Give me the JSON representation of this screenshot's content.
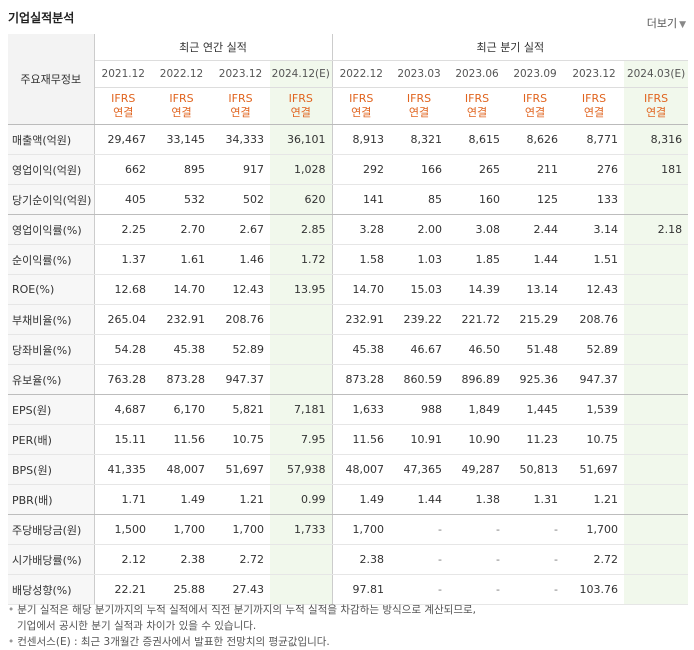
{
  "title": "기업실적분석",
  "more_label": "더보기",
  "more_arrow": "▼",
  "label_header": "주요재무정보",
  "groups": {
    "annual": "최근 연간 실적",
    "quarterly": "최근 분기 실적"
  },
  "periods": [
    "2021.12",
    "2022.12",
    "2023.12",
    "2024.12(E)",
    "2022.12",
    "2023.03",
    "2023.06",
    "2023.09",
    "2023.12",
    "2024.03(E)"
  ],
  "estimate_columns": [
    3,
    9
  ],
  "ifrs": {
    "line1": "IFRS",
    "line2": "연결"
  },
  "rows": [
    {
      "label": "매출액(억원)",
      "values": [
        "29,467",
        "33,145",
        "34,333",
        "36,101",
        "8,913",
        "8,321",
        "8,615",
        "8,626",
        "8,771",
        "8,316"
      ]
    },
    {
      "label": "영업이익(억원)",
      "values": [
        "662",
        "895",
        "917",
        "1,028",
        "292",
        "166",
        "265",
        "211",
        "276",
        "181"
      ]
    },
    {
      "label": "당기순이익(억원)",
      "values": [
        "405",
        "532",
        "502",
        "620",
        "141",
        "85",
        "160",
        "125",
        "133",
        ""
      ]
    },
    {
      "label": "영업이익률(%)",
      "values": [
        "2.25",
        "2.70",
        "2.67",
        "2.85",
        "3.28",
        "2.00",
        "3.08",
        "2.44",
        "3.14",
        "2.18"
      ]
    },
    {
      "label": "순이익률(%)",
      "values": [
        "1.37",
        "1.61",
        "1.46",
        "1.72",
        "1.58",
        "1.03",
        "1.85",
        "1.44",
        "1.51",
        ""
      ]
    },
    {
      "label": "ROE(%)",
      "values": [
        "12.68",
        "14.70",
        "12.43",
        "13.95",
        "14.70",
        "15.03",
        "14.39",
        "13.14",
        "12.43",
        ""
      ]
    },
    {
      "label": "부채비율(%)",
      "values": [
        "265.04",
        "232.91",
        "208.76",
        "",
        "232.91",
        "239.22",
        "221.72",
        "215.29",
        "208.76",
        ""
      ]
    },
    {
      "label": "당좌비율(%)",
      "values": [
        "54.28",
        "45.38",
        "52.89",
        "",
        "45.38",
        "46.67",
        "46.50",
        "51.48",
        "52.89",
        ""
      ]
    },
    {
      "label": "유보율(%)",
      "values": [
        "763.28",
        "873.28",
        "947.37",
        "",
        "873.28",
        "860.59",
        "896.89",
        "925.36",
        "947.37",
        ""
      ]
    },
    {
      "label": "EPS(원)",
      "values": [
        "4,687",
        "6,170",
        "5,821",
        "7,181",
        "1,633",
        "988",
        "1,849",
        "1,445",
        "1,539",
        ""
      ]
    },
    {
      "label": "PER(배)",
      "values": [
        "15.11",
        "11.56",
        "10.75",
        "7.95",
        "11.56",
        "10.91",
        "10.90",
        "11.23",
        "10.75",
        ""
      ]
    },
    {
      "label": "BPS(원)",
      "values": [
        "41,335",
        "48,007",
        "51,697",
        "57,938",
        "48,007",
        "47,365",
        "49,287",
        "50,813",
        "51,697",
        ""
      ]
    },
    {
      "label": "PBR(배)",
      "values": [
        "1.71",
        "1.49",
        "1.21",
        "0.99",
        "1.49",
        "1.44",
        "1.38",
        "1.31",
        "1.21",
        ""
      ]
    },
    {
      "label": "주당배당금(원)",
      "values": [
        "1,500",
        "1,700",
        "1,700",
        "1,733",
        "1,700",
        "-",
        "-",
        "-",
        "1,700",
        ""
      ]
    },
    {
      "label": "시가배당률(%)",
      "values": [
        "2.12",
        "2.38",
        "2.72",
        "",
        "2.38",
        "-",
        "-",
        "-",
        "2.72",
        ""
      ]
    },
    {
      "label": "배당성향(%)",
      "values": [
        "22.21",
        "25.88",
        "27.43",
        "",
        "97.81",
        "-",
        "-",
        "-",
        "103.76",
        ""
      ]
    }
  ],
  "notes": [
    "분기 실적은 해당 분기까지의 누적 실적에서 직전 분기까지의 누적 실적을 차감하는 방식으로 계산되므로,",
    "기업에서 공시한 분기 실적과 차이가 있을 수 있습니다.",
    "컨센서스(E) : 최근 3개월간 증권사에서 발표한 전망치의 평균값입니다."
  ],
  "bullet": "•"
}
